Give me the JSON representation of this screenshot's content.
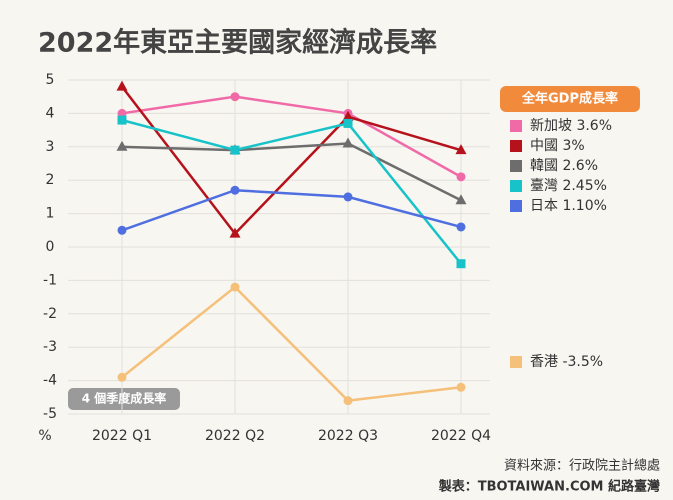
{
  "chart_data": {
    "type": "line",
    "title": "2022年東亞主要國家經濟成長率",
    "legend_title": "全年GDP成長率",
    "quarter_label": "4 個季度成長率",
    "y_unit": "%",
    "source": "資料來源：行政院主計總處",
    "credit": "製表：TBOTAIWAN.COM 紀路臺灣",
    "categories": [
      "2022 Q1",
      "2022 Q2",
      "2022 Q3",
      "2022 Q4"
    ],
    "ylim": [
      -5,
      5
    ],
    "yticks": [
      -5,
      -4,
      -3,
      -2,
      -1,
      0,
      1,
      2,
      3,
      4,
      5
    ],
    "grid": true,
    "series": [
      {
        "name": "新加坡  3.6%",
        "color": "#f06aa8",
        "marker": "circle",
        "values": [
          4.0,
          4.5,
          4.0,
          2.1
        ]
      },
      {
        "name": "中國  3%",
        "color": "#b5121b",
        "marker": "triangle",
        "values": [
          4.8,
          0.4,
          3.9,
          2.9
        ]
      },
      {
        "name": "韓國  2.6%",
        "color": "#6d6d6d",
        "marker": "triangle",
        "values": [
          3.0,
          2.9,
          3.1,
          1.4
        ]
      },
      {
        "name": "臺灣  2.45%",
        "color": "#17c3c8",
        "marker": "square",
        "values": [
          3.8,
          2.9,
          3.7,
          -0.5
        ]
      },
      {
        "name": "日本  1.10%",
        "color": "#4f6fe0",
        "marker": "circle",
        "values": [
          0.5,
          1.7,
          1.5,
          0.6
        ]
      },
      {
        "name": "香港  -3.5%",
        "color": "#f5c07a",
        "marker": "circle",
        "values": [
          -3.9,
          -1.2,
          -4.6,
          -4.2
        ]
      }
    ]
  }
}
